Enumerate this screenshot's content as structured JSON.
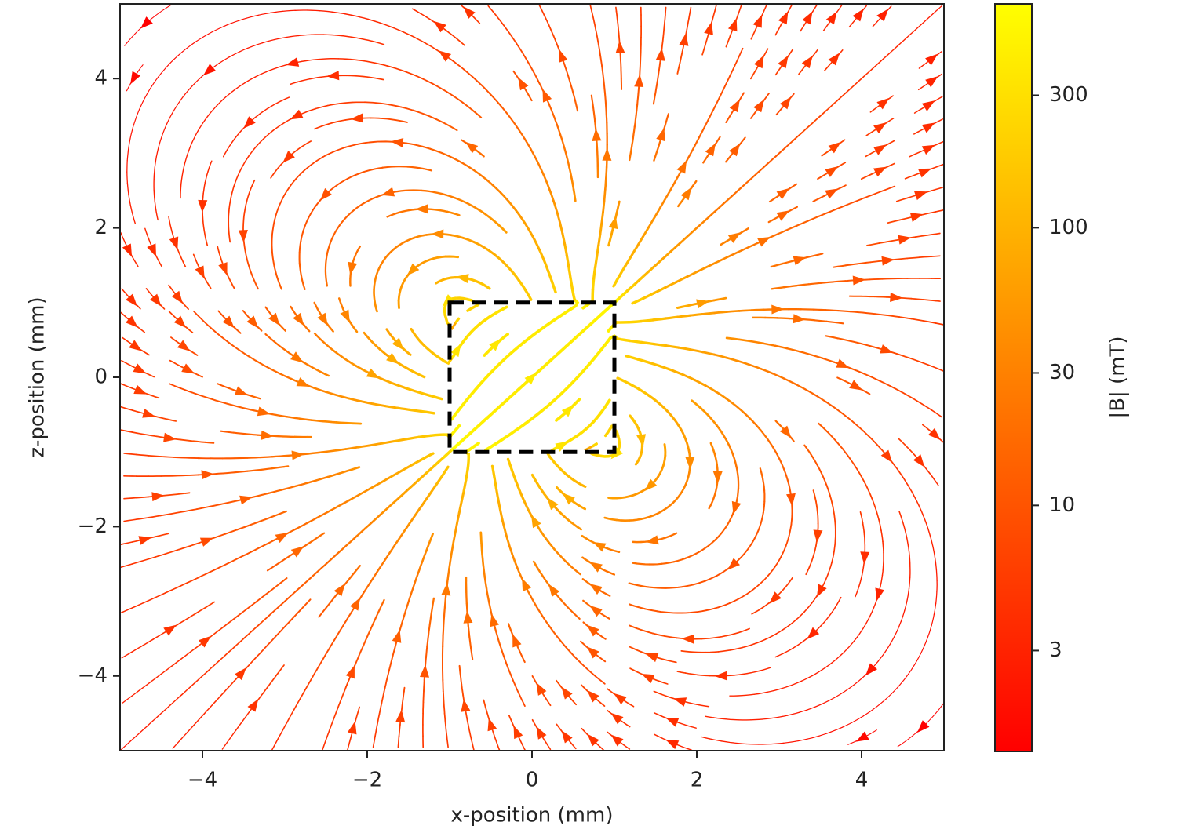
{
  "chart_data": {
    "type": "streamplot",
    "xlabel": "x-position (mm)",
    "ylabel": "z-position (mm)",
    "xlim": [
      -5,
      5
    ],
    "ylim": [
      -5,
      5
    ],
    "xticks": [
      {
        "value": -4,
        "label": "−4"
      },
      {
        "value": -2,
        "label": "−2"
      },
      0,
      2,
      4
    ],
    "yticks": [
      {
        "value": -4,
        "label": "−4"
      },
      {
        "value": -2,
        "label": "−2"
      },
      0,
      2,
      4
    ],
    "magnet": {
      "x": [
        -1,
        1
      ],
      "y": [
        -1,
        1
      ]
    },
    "colorbar": {
      "label": "|B| (mT)",
      "log": true,
      "lim": [
        1.3,
        640
      ],
      "ticks": [
        3,
        10,
        30,
        100,
        300
      ],
      "colormap": [
        "#ff0000",
        "#ffff00"
      ]
    }
  }
}
